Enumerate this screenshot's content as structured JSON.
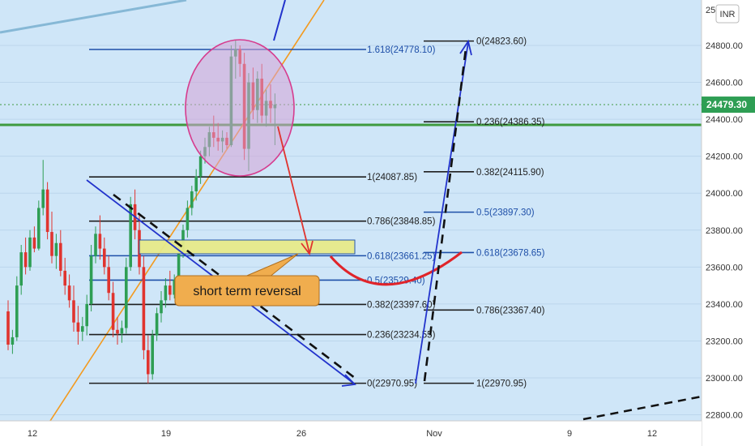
{
  "chart_data": {
    "type": "candlestick",
    "currency": "INR",
    "last_price": "24479.30",
    "ylim": [
      22800,
      25000
    ],
    "y_ticks": [
      22800,
      23000,
      23200,
      23400,
      23600,
      23800,
      24000,
      24200,
      24400,
      24600,
      24800
    ],
    "y_tick_labels": [
      "22800.00",
      "23000.00",
      "23200.00",
      "23400.00",
      "23600.00",
      "23800.00",
      "24000.00",
      "24200.00",
      "24400.00",
      "24600.00",
      "24800.00"
    ],
    "x_labels": [
      "12",
      "19",
      "26",
      "Nov",
      "9",
      "12"
    ],
    "green_line_level": 24370,
    "fib_left": [
      {
        "label": "0(22970.95)",
        "value": 22970.95,
        "color": "#1f1f1f"
      },
      {
        "label": "0.236(23234.55)",
        "value": 23234.55,
        "color": "#1f1f1f"
      },
      {
        "label": "0.382(23397.60)",
        "value": 23397.6,
        "color": "#1f1f1f"
      },
      {
        "label": "0.5(23529.40)",
        "value": 23529.4,
        "color": "#1e4fa8"
      },
      {
        "label": "0.618(23661.25)",
        "value": 23661.25,
        "color": "#1e4fa8"
      },
      {
        "label": "0.786(23848.85)",
        "value": 23848.85,
        "color": "#1f1f1f"
      },
      {
        "label": "1(24087.85)",
        "value": 24087.85,
        "color": "#1f1f1f"
      },
      {
        "label": "1.618(24778.10)",
        "value": 24778.1,
        "color": "#1e4fa8"
      }
    ],
    "fib_right": [
      {
        "label": "1(22970.95)",
        "value": 22970.95,
        "color": "#1f1f1f"
      },
      {
        "label": "0.786(23367.40)",
        "value": 23367.4,
        "color": "#1f1f1f"
      },
      {
        "label": "0.618(23678.65)",
        "value": 23678.65,
        "color": "#1e4fa8"
      },
      {
        "label": "0.5(23897.30)",
        "value": 23897.3,
        "color": "#1e4fa8"
      },
      {
        "label": "0.382(24115.90)",
        "value": 24115.9,
        "color": "#1f1f1f"
      },
      {
        "label": "0.236(24386.35)",
        "value": 24386.35,
        "color": "#1f1f1f"
      },
      {
        "label": "0(24823.60)",
        "value": 24823.6,
        "color": "#1f1f1f"
      }
    ],
    "annotation": "short term reversal",
    "candles": [
      [
        23360,
        23420,
        23150,
        23180
      ],
      [
        23180,
        23260,
        23130,
        23220
      ],
      [
        23220,
        23550,
        23200,
        23500
      ],
      [
        23500,
        23720,
        23450,
        23680
      ],
      [
        23680,
        23760,
        23560,
        23600
      ],
      [
        23600,
        23800,
        23580,
        23760
      ],
      [
        23760,
        23820,
        23680,
        23700
      ],
      [
        23700,
        23960,
        23690,
        23920
      ],
      [
        23920,
        24180,
        23880,
        24020
      ],
      [
        24020,
        24060,
        23750,
        23790
      ],
      [
        23790,
        23900,
        23620,
        23660
      ],
      [
        23660,
        23780,
        23590,
        23730
      ],
      [
        23730,
        23800,
        23550,
        23580
      ],
      [
        23580,
        23650,
        23450,
        23500
      ],
      [
        23500,
        23560,
        23380,
        23420
      ],
      [
        23420,
        23500,
        23250,
        23300
      ],
      [
        23300,
        23390,
        23180,
        23250
      ],
      [
        23250,
        23330,
        23200,
        23280
      ],
      [
        23280,
        23450,
        23230,
        23400
      ],
      [
        23400,
        23720,
        23360,
        23660
      ],
      [
        23660,
        23820,
        23620,
        23780
      ],
      [
        23780,
        23880,
        23640,
        23700
      ],
      [
        23700,
        23760,
        23560,
        23600
      ],
      [
        23600,
        23660,
        23420,
        23460
      ],
      [
        23460,
        23520,
        23220,
        23260
      ],
      [
        23260,
        23330,
        23180,
        23240
      ],
      [
        23240,
        23310,
        23190,
        23270
      ],
      [
        23270,
        23650,
        23240,
        23600
      ],
      [
        23600,
        23980,
        23580,
        23940
      ],
      [
        23940,
        24020,
        23750,
        23800
      ],
      [
        23800,
        23880,
        23560,
        23600
      ],
      [
        23600,
        23660,
        23100,
        23150
      ],
      [
        23150,
        23230,
        22970,
        23020
      ],
      [
        23020,
        23260,
        22990,
        23230
      ],
      [
        23230,
        23380,
        23200,
        23350
      ],
      [
        23350,
        23470,
        23300,
        23420
      ],
      [
        23420,
        23540,
        23380,
        23500
      ],
      [
        23500,
        23580,
        23420,
        23450
      ],
      [
        23450,
        23560,
        23430,
        23530
      ],
      [
        23530,
        23720,
        23500,
        23680
      ],
      [
        23680,
        23830,
        23650,
        23800
      ],
      [
        23800,
        23960,
        23760,
        23920
      ],
      [
        23920,
        24040,
        23880,
        24010
      ],
      [
        24010,
        24130,
        23960,
        24090
      ],
      [
        24090,
        24230,
        24050,
        24200
      ],
      [
        24200,
        24300,
        24160,
        24250
      ],
      [
        24250,
        24360,
        24200,
        24330
      ],
      [
        24330,
        24420,
        24250,
        24300
      ],
      [
        24300,
        24380,
        24230,
        24280
      ],
      [
        24280,
        24340,
        24220,
        24300
      ],
      [
        24300,
        24330,
        24240,
        24260
      ],
      [
        24260,
        24800,
        24250,
        24740
      ],
      [
        24740,
        24830,
        24620,
        24780
      ],
      [
        24780,
        24800,
        24630,
        24700
      ],
      [
        24700,
        24760,
        24180,
        24240
      ],
      [
        24240,
        24650,
        24120,
        24600
      ],
      [
        24600,
        24680,
        24400,
        24450
      ],
      [
        24450,
        24660,
        24380,
        24620
      ],
      [
        24620,
        24700,
        24380,
        24420
      ],
      [
        24420,
        24560,
        24360,
        24500
      ],
      [
        24500,
        24590,
        24380,
        24460
      ],
      [
        24460,
        24540,
        24260,
        24480
      ]
    ]
  }
}
